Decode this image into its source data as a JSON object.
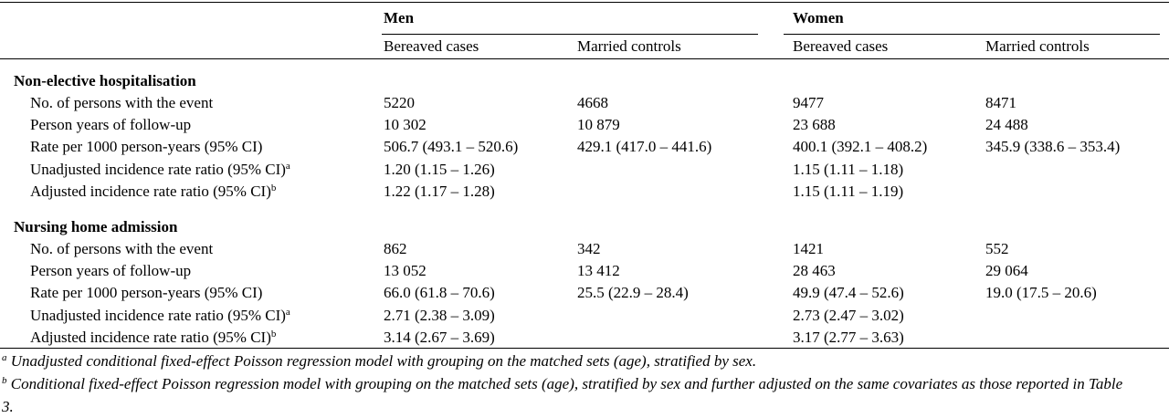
{
  "header": {
    "groups": [
      {
        "label": "Men",
        "columns": [
          "Bereaved cases",
          "Married controls"
        ]
      },
      {
        "label": "Women",
        "columns": [
          "Bereaved cases",
          "Married controls"
        ]
      }
    ]
  },
  "sections": [
    {
      "title": "Non-elective hospitalisation",
      "rows": [
        {
          "label": "No. of persons with the event",
          "cells": [
            "5220",
            "4668",
            "9477",
            "8471"
          ]
        },
        {
          "label": "Person years of follow-up",
          "cells": [
            "10 302",
            "10 879",
            "23 688",
            "24 488"
          ]
        },
        {
          "label": "Rate per 1000 person-years (95% CI)",
          "cells": [
            "506.7 (493.1 – 520.6)",
            "429.1 (417.0 – 441.6)",
            "400.1 (392.1 – 408.2)",
            "345.9 (338.6 – 353.4)"
          ]
        },
        {
          "label": "Unadjusted incidence rate ratio (95% CI)",
          "note": "a",
          "cells": [
            "1.20 (1.15 – 1.26)",
            null,
            "1.15 (1.11 – 1.18)",
            null
          ]
        },
        {
          "label": "Adjusted incidence rate ratio (95% CI)",
          "note": "b",
          "cells": [
            "1.22 (1.17 – 1.28)",
            null,
            "1.15 (1.11 – 1.19)",
            null
          ]
        }
      ]
    },
    {
      "title": "Nursing home admission",
      "rows": [
        {
          "label": "No. of persons with the event",
          "cells": [
            "862",
            "342",
            "1421",
            "552"
          ]
        },
        {
          "label": "Person years of follow-up",
          "cells": [
            "13 052",
            "13 412",
            "28 463",
            "29 064"
          ]
        },
        {
          "label": "Rate per 1000 person-years (95% CI)",
          "cells": [
            "66.0 (61.8 – 70.6)",
            "25.5 (22.9 – 28.4)",
            "49.9 (47.4 – 52.6)",
            "19.0 (17.5 – 20.6)"
          ]
        },
        {
          "label": "Unadjusted incidence rate ratio (95% CI)",
          "note": "a",
          "cells": [
            "2.71 (2.38 – 3.09)",
            null,
            "2.73 (2.47 – 3.02)",
            null
          ]
        },
        {
          "label": "Adjusted incidence rate ratio (95% CI)",
          "note": "b",
          "cells": [
            "3.14 (2.67 – 3.69)",
            null,
            "3.17 (2.77 – 3.63)",
            null
          ]
        }
      ]
    }
  ],
  "footnotes": [
    {
      "marker": "a",
      "text": "Unadjusted conditional fixed-effect Poisson regression model with grouping on the matched sets (age), stratified by sex."
    },
    {
      "marker": "b",
      "text": "Conditional fixed-effect Poisson regression model with grouping on the matched sets (age), stratified by sex and further adjusted on the same covariates as those reported in Table 3."
    }
  ]
}
